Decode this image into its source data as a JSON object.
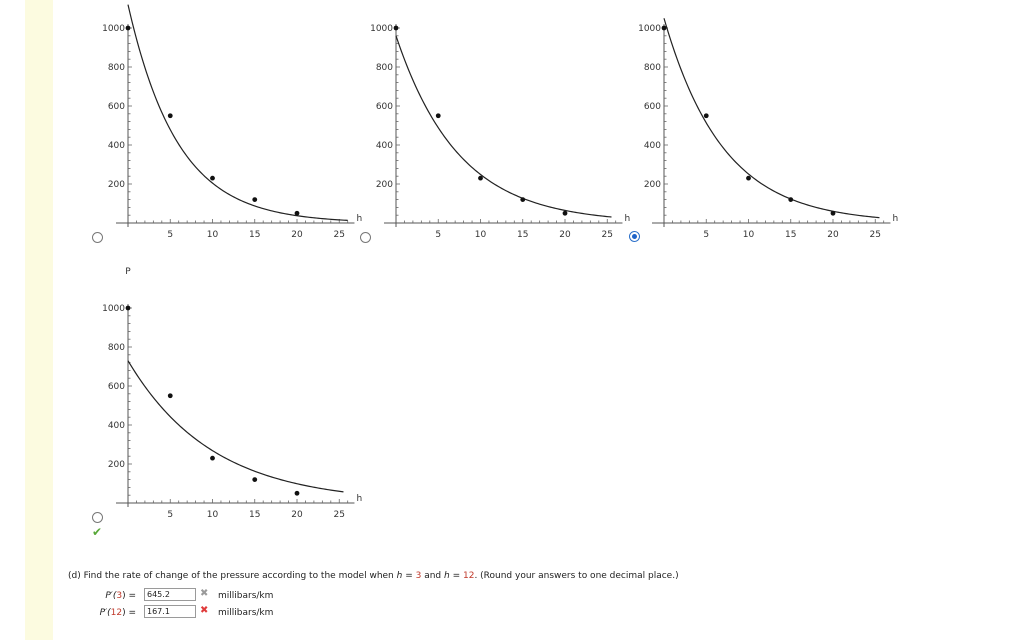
{
  "plots": [
    {
      "id": "option-a",
      "y_ticks": [
        "200",
        "400",
        "600",
        "800",
        "1000"
      ],
      "x_ticks": [
        "5",
        "10",
        "15",
        "20",
        "25"
      ],
      "x_label": "h",
      "y_label": "",
      "points": [
        [
          0,
          1000
        ],
        [
          5,
          550
        ],
        [
          10,
          230
        ],
        [
          15,
          120
        ],
        [
          20,
          50
        ]
      ],
      "curve": {
        "a": 1120,
        "k": 0.17,
        "xmin": 0,
        "xmax": 26
      },
      "radio_selected": false
    },
    {
      "id": "option-b",
      "y_ticks": [
        "200",
        "400",
        "600",
        "800",
        "1000"
      ],
      "x_ticks": [
        "5",
        "10",
        "15",
        "20",
        "25"
      ],
      "x_label": "h",
      "y_label": "",
      "points": [
        [
          0,
          1000
        ],
        [
          5,
          550
        ],
        [
          10,
          230
        ],
        [
          15,
          120
        ],
        [
          20,
          50
        ]
      ],
      "curve": {
        "a": 960,
        "k": 0.135,
        "xmin": 0,
        "xmax": 25.5
      },
      "radio_selected": false
    },
    {
      "id": "option-c",
      "y_ticks": [
        "200",
        "400",
        "600",
        "800",
        "1000"
      ],
      "x_ticks": [
        "5",
        "10",
        "15",
        "20",
        "25"
      ],
      "x_label": "h",
      "y_label": "",
      "points": [
        [
          0,
          1000
        ],
        [
          5,
          550
        ],
        [
          10,
          230
        ],
        [
          15,
          120
        ],
        [
          20,
          50
        ]
      ],
      "curve": {
        "a": 1050,
        "k": 0.143,
        "xmin": 0,
        "xmax": 25.5
      },
      "radio_selected": true
    },
    {
      "id": "option-d",
      "y_ticks": [
        "200",
        "400",
        "600",
        "800",
        "1000"
      ],
      "x_ticks": [
        "5",
        "10",
        "15",
        "20",
        "25"
      ],
      "x_label": "h",
      "y_label": "P",
      "points": [
        [
          0,
          1000
        ],
        [
          5,
          550
        ],
        [
          10,
          230
        ],
        [
          15,
          120
        ],
        [
          20,
          50
        ]
      ],
      "curve": {
        "a": 730,
        "k": 0.1,
        "xmin": 0,
        "xmax": 25.5
      },
      "radio_selected": false
    }
  ],
  "question": {
    "prefix": "(d)  Find the rate of change of the pressure according to the model when ",
    "var1": "h",
    "eq1": " = ",
    "val1": "3",
    "and": " and ",
    "var2": "h",
    "eq2": " = ",
    "val2": "12",
    "suffix": ". (Round your answers to one decimal place.)"
  },
  "answers": [
    {
      "fn": "P′(",
      "arg": "3",
      "close": ")  =",
      "value": "645.2",
      "mark": "✖",
      "unit": "millibars/km"
    },
    {
      "fn": "P′(",
      "arg": "12",
      "close": ")  =",
      "value": "167.1",
      "mark": "✖",
      "unit": "millibars/km"
    }
  ],
  "check_mark": "✔",
  "colors": {
    "sidebar": "#fcfbe0",
    "correct": "#58a838",
    "incorrect": "#e03b3b",
    "radio_selected": "#1f64c8",
    "highlight": "#c0392b"
  }
}
